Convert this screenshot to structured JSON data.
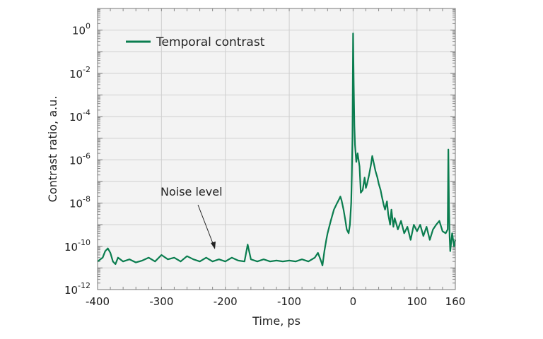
{
  "chart_data": {
    "type": "line",
    "title": "",
    "xlabel": "Time, ps",
    "ylabel": "Contrast ratio, a.u.",
    "xlim": [
      -400,
      160
    ],
    "ylim": [
      1e-12,
      10
    ],
    "y_scale": "log",
    "grid": true,
    "legend_position": "top-left",
    "x_ticks": [
      {
        "value": -400,
        "label": "-400"
      },
      {
        "value": -300,
        "label": "-300"
      },
      {
        "value": -200,
        "label": "-200"
      },
      {
        "value": -100,
        "label": "-100"
      },
      {
        "value": 0,
        "label": "0"
      },
      {
        "value": 100,
        "label": "100"
      },
      {
        "value": 160,
        "label": "160"
      }
    ],
    "y_ticks": [
      {
        "value": 1e-12,
        "base": "10",
        "exp": "-12"
      },
      {
        "value": 1e-10,
        "base": "10",
        "exp": "-10"
      },
      {
        "value": 1e-08,
        "base": "10",
        "exp": "-8"
      },
      {
        "value": 1e-06,
        "base": "10",
        "exp": "-6"
      },
      {
        "value": 0.0001,
        "base": "10",
        "exp": "-4"
      },
      {
        "value": 0.01,
        "base": "10",
        "exp": "-2"
      },
      {
        "value": 1,
        "base": "10",
        "exp": "0"
      }
    ],
    "series": [
      {
        "name": "Temporal contrast",
        "color": "#0a7d4f",
        "x": [
          -400,
          -392,
          -388,
          -384,
          -380,
          -376,
          -372,
          -368,
          -360,
          -350,
          -340,
          -330,
          -320,
          -310,
          -300,
          -290,
          -280,
          -270,
          -260,
          -250,
          -240,
          -230,
          -220,
          -210,
          -200,
          -190,
          -180,
          -170,
          -165,
          -160,
          -150,
          -140,
          -130,
          -120,
          -110,
          -100,
          -90,
          -80,
          -70,
          -60,
          -55,
          -50,
          -48,
          -45,
          -42,
          -40,
          -35,
          -30,
          -25,
          -22,
          -20,
          -18,
          -15,
          -12,
          -10,
          -7,
          -5,
          -3,
          -2,
          -1,
          0,
          1,
          2,
          3,
          5,
          7,
          10,
          12,
          15,
          18,
          20,
          22,
          25,
          28,
          30,
          32,
          35,
          38,
          40,
          43,
          45,
          48,
          50,
          53,
          55,
          58,
          60,
          63,
          65,
          68,
          70,
          75,
          80,
          85,
          90,
          95,
          100,
          105,
          110,
          115,
          120,
          125,
          130,
          135,
          140,
          145,
          148,
          149,
          150,
          151,
          152,
          155,
          158,
          160
        ],
        "y": [
          2e-11,
          3e-11,
          6e-11,
          8e-11,
          5e-11,
          2e-11,
          1.5e-11,
          3e-11,
          2e-11,
          2.5e-11,
          1.8e-11,
          2.2e-11,
          3e-11,
          2e-11,
          4e-11,
          2.5e-11,
          3e-11,
          2e-11,
          3.5e-11,
          2.5e-11,
          2e-11,
          3e-11,
          2e-11,
          2.5e-11,
          2e-11,
          3e-11,
          2.2e-11,
          2e-11,
          1.2e-10,
          2.5e-11,
          2e-11,
          2.5e-11,
          2e-11,
          2.2e-11,
          2e-11,
          2.2e-11,
          2e-11,
          2.5e-11,
          2e-11,
          3e-11,
          5e-11,
          2e-11,
          1.3e-11,
          6e-11,
          2e-10,
          4e-10,
          1.5e-09,
          5e-09,
          1e-08,
          1.5e-08,
          2e-08,
          1.3e-08,
          5e-09,
          1.5e-09,
          6e-10,
          4e-10,
          1e-09,
          1e-08,
          2e-07,
          1e-05,
          0.7,
          0.003,
          4e-05,
          5e-06,
          8e-07,
          2e-06,
          5e-07,
          3e-08,
          4e-08,
          1.5e-07,
          5e-08,
          8e-08,
          2e-07,
          6e-07,
          1.5e-06,
          8e-07,
          3e-07,
          1.5e-07,
          8e-08,
          4e-08,
          2e-08,
          8e-09,
          5e-09,
          1.2e-08,
          3e-09,
          1e-09,
          5e-09,
          8e-10,
          2e-09,
          1e-09,
          6e-10,
          1.5e-09,
          4e-10,
          8e-10,
          2e-10,
          1e-09,
          5e-10,
          1e-09,
          3e-10,
          8e-10,
          2e-10,
          6e-10,
          1e-09,
          1.5e-09,
          5e-10,
          4e-10,
          6e-10,
          3e-06,
          8e-09,
          3e-10,
          6e-11,
          4e-10,
          1e-10,
          2e-10
        ]
      }
    ],
    "annotations": [
      {
        "text": "Noise level",
        "x": -215,
        "y": 1e-10
      }
    ]
  }
}
